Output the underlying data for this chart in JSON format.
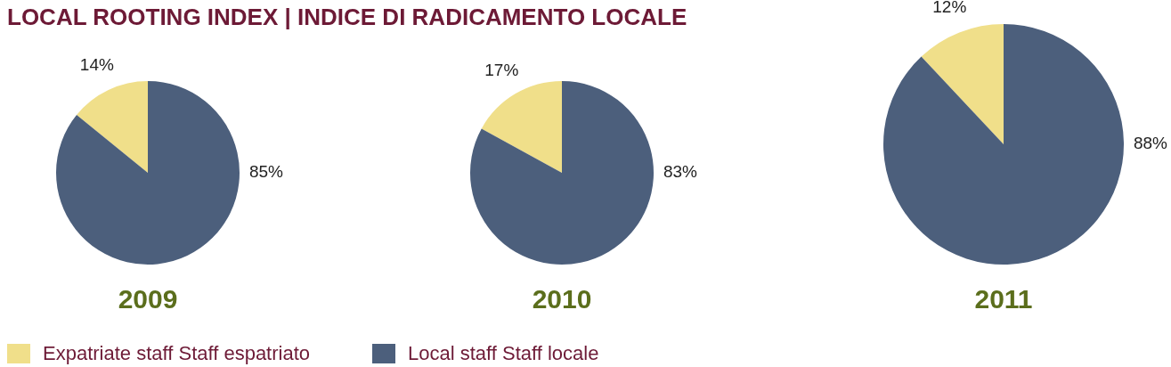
{
  "chart_data": [
    {
      "type": "pie",
      "title": "LOCAL ROOTING INDEX | INDICE DI RADICAMENTO LOCALE",
      "xlabel": "2009",
      "categories": [
        "Expatriate staff Staff espatriato",
        "Local staff Staff locale"
      ],
      "values": [
        14,
        85
      ],
      "colors": [
        "#f0df8a",
        "#4c5f7c"
      ],
      "value_labels": [
        "14%",
        "85%"
      ],
      "legend": "bottom"
    },
    {
      "type": "pie",
      "xlabel": "2010",
      "categories": [
        null,
        null
      ],
      "values": [
        17,
        83
      ],
      "colors": [
        "#f0df8a",
        "#4c5f7c"
      ],
      "value_labels": [
        "17%",
        "83%"
      ]
    },
    {
      "type": "pie",
      "xlabel": "2011",
      "categories": [
        null,
        null
      ],
      "values": [
        12,
        88
      ],
      "colors": [
        "#f0df8a",
        "#4c5f7c"
      ],
      "value_labels": [
        "12%",
        "88%"
      ]
    }
  ]
}
